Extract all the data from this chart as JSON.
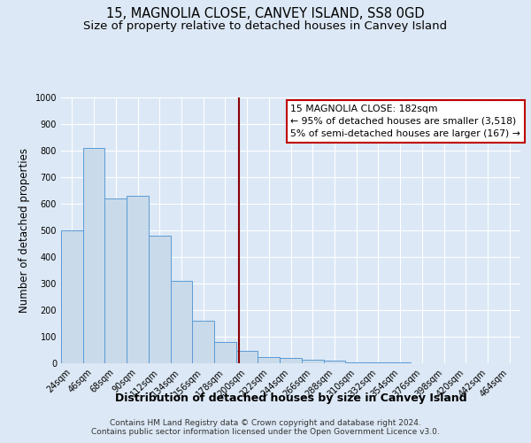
{
  "title": "15, MAGNOLIA CLOSE, CANVEY ISLAND, SS8 0GD",
  "subtitle": "Size of property relative to detached houses in Canvey Island",
  "xlabel": "Distribution of detached houses by size in Canvey Island",
  "ylabel": "Number of detached properties",
  "bin_labels": [
    "24sqm",
    "46sqm",
    "68sqm",
    "90sqm",
    "112sqm",
    "134sqm",
    "156sqm",
    "178sqm",
    "200sqm",
    "222sqm",
    "244sqm",
    "266sqm",
    "288sqm",
    "310sqm",
    "332sqm",
    "354sqm",
    "376sqm",
    "398sqm",
    "420sqm",
    "442sqm",
    "464sqm"
  ],
  "bar_heights": [
    500,
    810,
    620,
    630,
    480,
    310,
    160,
    80,
    47,
    22,
    20,
    12,
    10,
    5,
    3,
    2,
    1,
    1,
    0,
    0,
    0
  ],
  "bar_color": "#c9daea",
  "bar_edge_color": "#5b9bd5",
  "vline_x": 7.636,
  "vline_color": "#8b0000",
  "annotation_text": "15 MAGNOLIA CLOSE: 182sqm\n← 95% of detached houses are smaller (3,518)\n5% of semi-detached houses are larger (167) →",
  "annotation_box_color": "#ffffff",
  "annotation_box_edge": "#c00000",
  "ylim": [
    0,
    1000
  ],
  "yticks": [
    0,
    100,
    200,
    300,
    400,
    500,
    600,
    700,
    800,
    900,
    1000
  ],
  "footer_line1": "Contains HM Land Registry data © Crown copyright and database right 2024.",
  "footer_line2": "Contains public sector information licensed under the Open Government Licence v3.0.",
  "bg_color": "#dce8f5",
  "plot_bg_color": "#dce8f5",
  "title_fontsize": 10.5,
  "subtitle_fontsize": 9.5,
  "xlabel_fontsize": 9,
  "ylabel_fontsize": 8.5,
  "tick_fontsize": 7,
  "footer_fontsize": 6.5,
  "annotation_fontsize": 7.8
}
